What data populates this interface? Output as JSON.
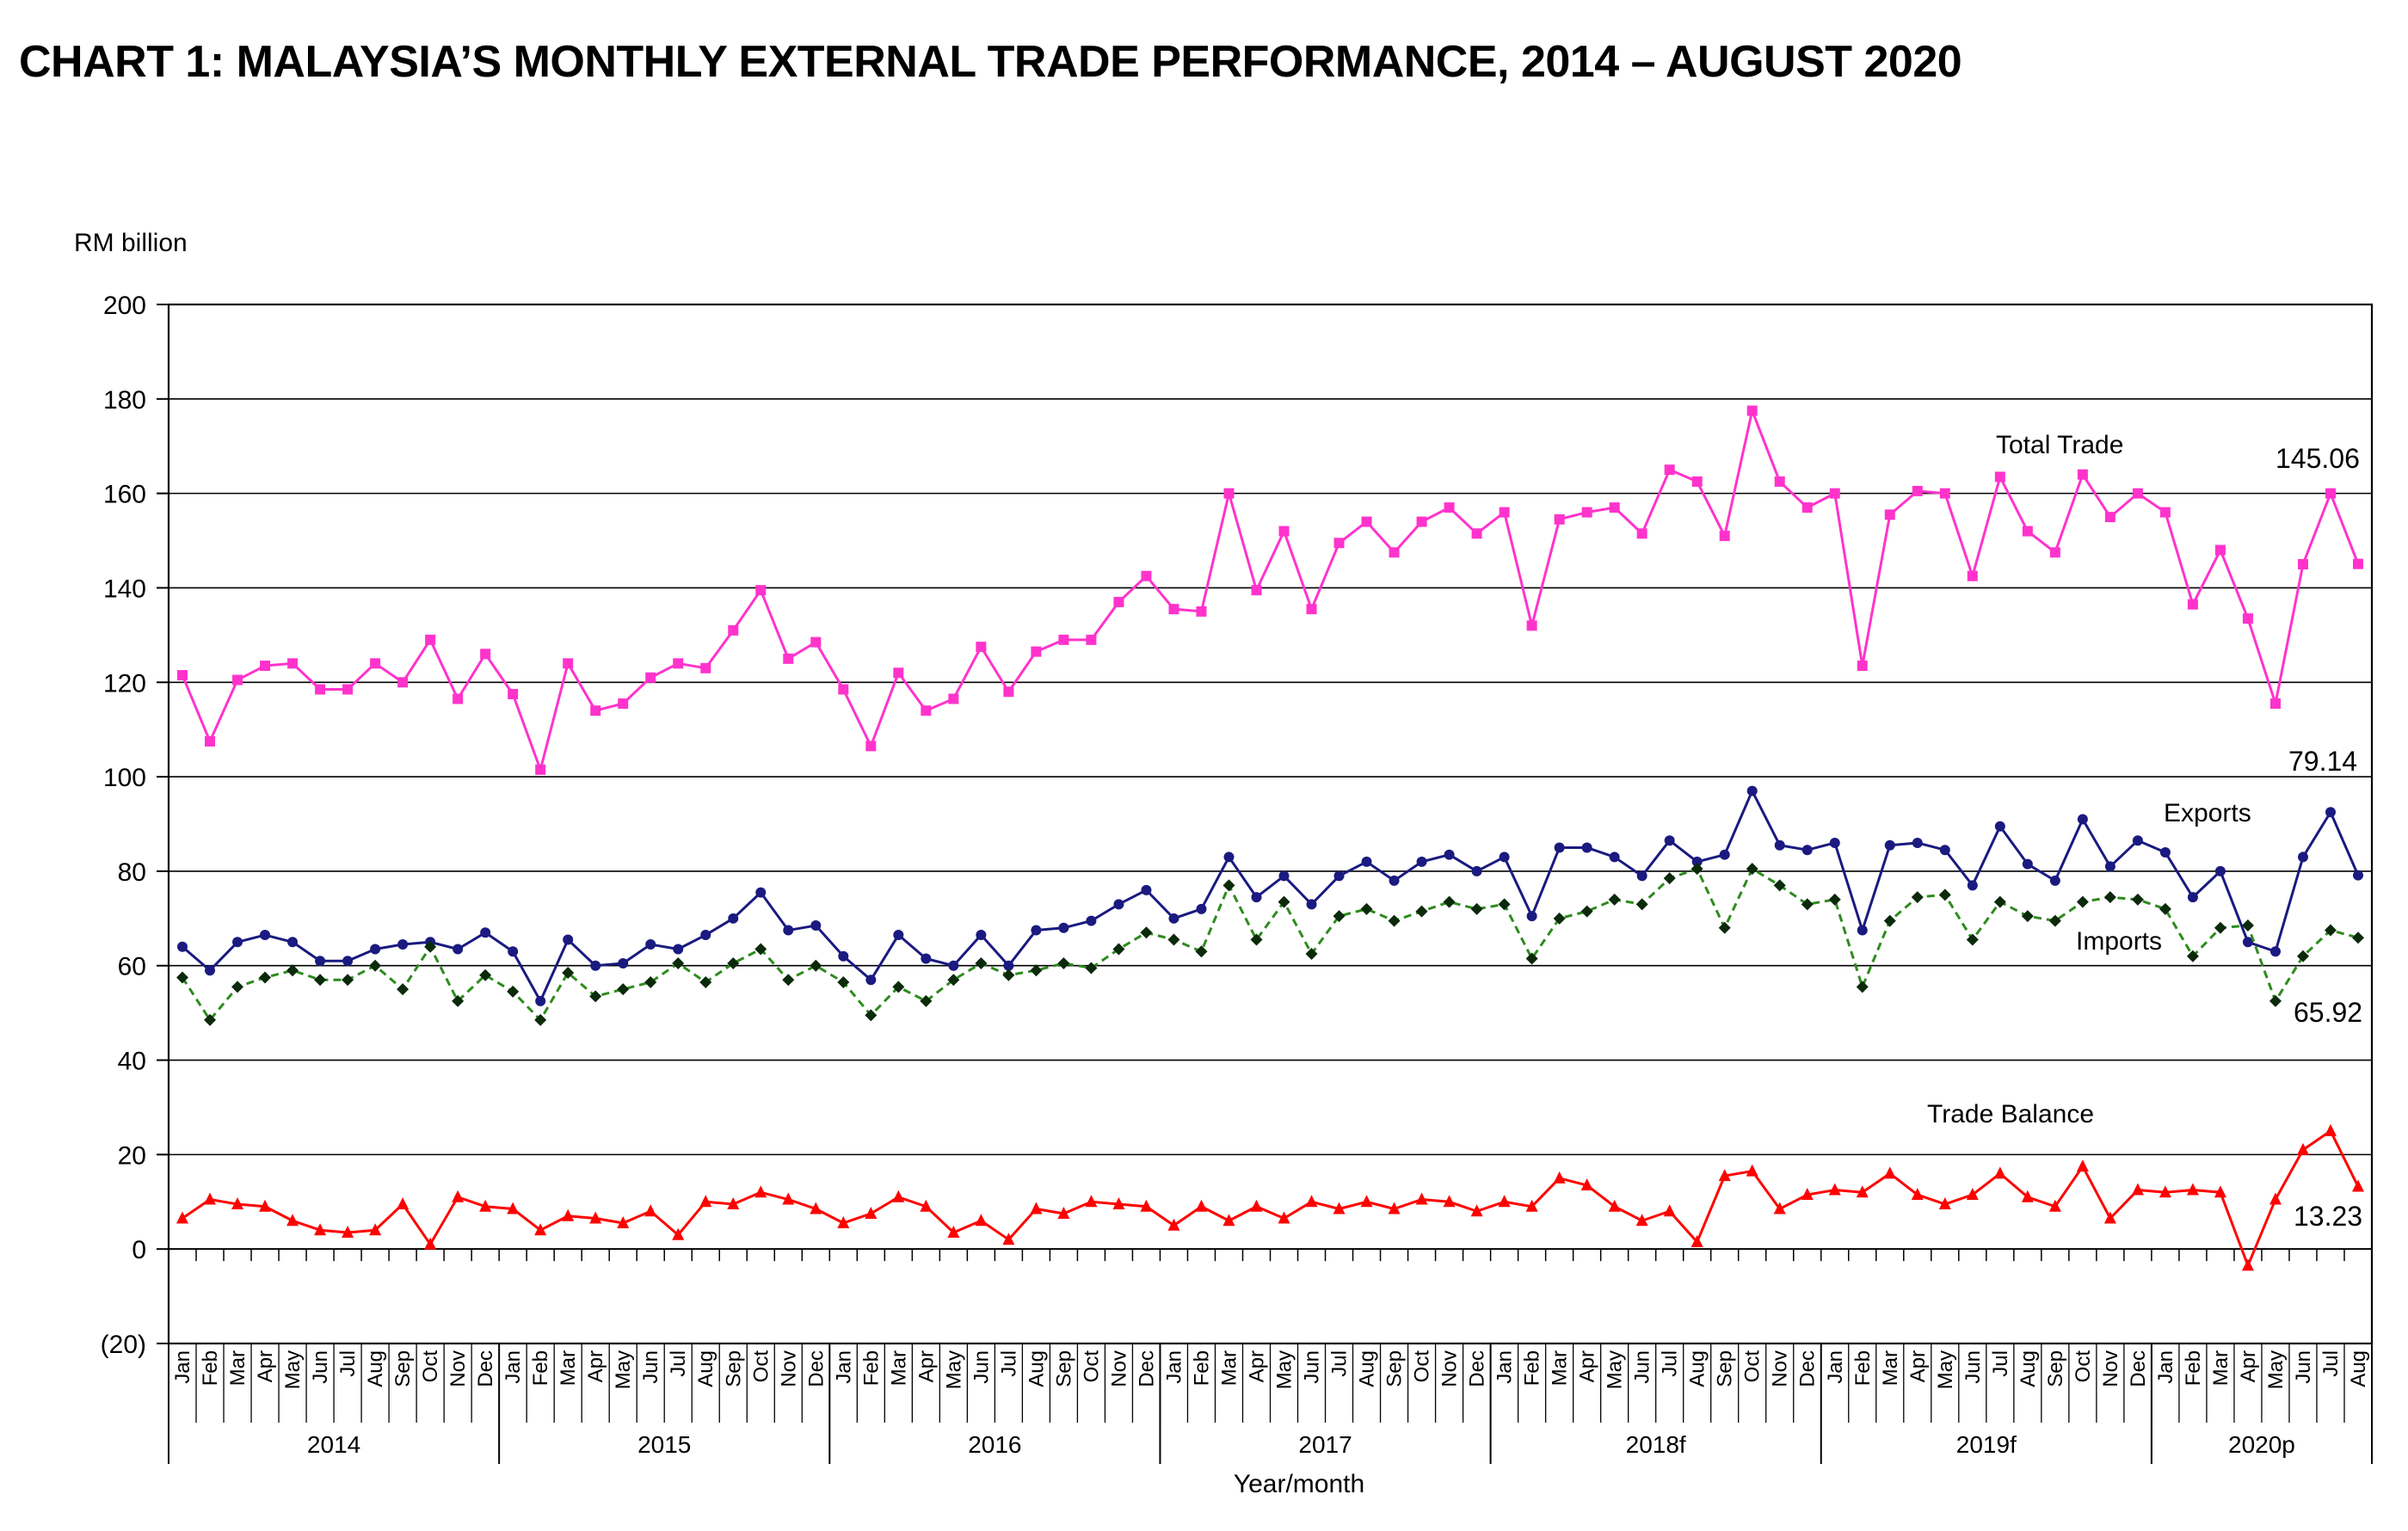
{
  "title": "CHART 1: MALAYSIA’S MONTHLY EXTERNAL TRADE PERFORMANCE, 2014 – AUGUST 2020",
  "chart_data": {
    "type": "line",
    "title": "CHART 1: MALAYSIA’S MONTHLY EXTERNAL TRADE PERFORMANCE, 2014 – AUGUST 2020",
    "ylabel": "RM billion",
    "xlabel": "Year/month",
    "ylim": [
      -20,
      200
    ],
    "yticks": [
      {
        "value": 200,
        "label": "200"
      },
      {
        "value": 180,
        "label": "180"
      },
      {
        "value": 160,
        "label": "160"
      },
      {
        "value": 140,
        "label": "140"
      },
      {
        "value": 120,
        "label": "120"
      },
      {
        "value": 100,
        "label": "100"
      },
      {
        "value": 80,
        "label": "80"
      },
      {
        "value": 60,
        "label": "60"
      },
      {
        "value": 40,
        "label": "40"
      },
      {
        "value": 20,
        "label": "20"
      },
      {
        "value": 0,
        "label": "0"
      },
      {
        "value": -20,
        "label": "(20)"
      }
    ],
    "grid": true,
    "months": [
      "Jan",
      "Feb",
      "Mar",
      "Apr",
      "May",
      "Jun",
      "Jul",
      "Aug",
      "Sep",
      "Oct",
      "Nov",
      "Dec"
    ],
    "years": [
      {
        "label": "2014",
        "months": 12
      },
      {
        "label": "2015",
        "months": 12
      },
      {
        "label": "2016",
        "months": 12
      },
      {
        "label": "2017",
        "months": 12
      },
      {
        "label": "2018f",
        "months": 12
      },
      {
        "label": "2019f",
        "months": 12
      },
      {
        "label": "2020p",
        "months": 8
      }
    ],
    "series": [
      {
        "name": "Total Trade",
        "color": "#ff33cc",
        "marker": "square",
        "dash": false,
        "values": [
          121.5,
          107.5,
          120.5,
          123.5,
          124.0,
          118.5,
          118.5,
          124.0,
          120.0,
          129.0,
          116.5,
          126.0,
          117.5,
          101.5,
          124.0,
          114.0,
          115.5,
          121.0,
          124.0,
          123.0,
          131.0,
          139.5,
          125.0,
          128.5,
          118.5,
          106.5,
          122.0,
          114.0,
          116.5,
          127.5,
          118.0,
          126.5,
          129.0,
          129.0,
          137.0,
          142.5,
          135.5,
          135.0,
          160.0,
          139.5,
          152.0,
          135.5,
          149.5,
          154.0,
          147.5,
          154.0,
          157.0,
          151.5,
          156.0,
          132.0,
          154.5,
          156.0,
          157.0,
          151.5,
          165.0,
          162.5,
          151.0,
          177.5,
          162.5,
          157.0,
          160.0,
          123.5,
          155.5,
          160.5,
          160.0,
          142.5,
          163.5,
          152.0,
          147.5,
          164.0,
          155.0,
          160.0,
          156.0,
          136.5,
          148.0,
          133.5,
          115.5,
          145.0,
          160.0,
          145.06
        ]
      },
      {
        "name": "Exports",
        "color": "#1a1a80",
        "marker": "circle",
        "dash": false,
        "values": [
          64.0,
          59.0,
          65.0,
          66.5,
          65.0,
          61.0,
          61.0,
          63.5,
          64.5,
          65.0,
          63.5,
          67.0,
          63.0,
          52.5,
          65.5,
          60.0,
          60.5,
          64.5,
          63.5,
          66.5,
          70.0,
          75.5,
          67.5,
          68.5,
          62.0,
          57.0,
          66.5,
          61.5,
          60.0,
          66.5,
          60.0,
          67.5,
          68.0,
          69.5,
          73.0,
          76.0,
          70.0,
          72.0,
          83.0,
          74.5,
          79.0,
          73.0,
          79.0,
          82.0,
          78.0,
          82.0,
          83.5,
          80.0,
          83.0,
          70.5,
          85.0,
          85.0,
          83.0,
          79.0,
          86.5,
          82.0,
          83.5,
          97.0,
          85.5,
          84.5,
          86.0,
          67.5,
          85.5,
          86.0,
          84.5,
          77.0,
          89.5,
          81.5,
          78.0,
          91.0,
          81.0,
          86.5,
          84.0,
          74.5,
          80.0,
          65.0,
          63.0,
          83.0,
          92.5,
          79.14
        ]
      },
      {
        "name": "Imports",
        "color": "#2e8b1e",
        "marker": "diamond",
        "dash": true,
        "values": [
          57.5,
          48.5,
          55.5,
          57.5,
          59.0,
          57.0,
          57.0,
          60.0,
          55.0,
          64.0,
          52.5,
          58.0,
          54.5,
          48.5,
          58.5,
          53.5,
          55.0,
          56.5,
          60.5,
          56.5,
          60.5,
          63.5,
          57.0,
          60.0,
          56.5,
          49.5,
          55.5,
          52.5,
          57.0,
          60.5,
          58.0,
          59.0,
          60.5,
          59.5,
          63.5,
          67.0,
          65.5,
          63.0,
          77.0,
          65.5,
          73.5,
          62.5,
          70.5,
          72.0,
          69.5,
          71.5,
          73.5,
          72.0,
          73.0,
          61.5,
          70.0,
          71.5,
          74.0,
          73.0,
          78.5,
          80.5,
          68.0,
          80.5,
          77.0,
          73.0,
          74.0,
          55.5,
          69.5,
          74.5,
          75.0,
          65.5,
          73.5,
          70.5,
          69.5,
          73.5,
          74.5,
          74.0,
          72.0,
          62.0,
          68.0,
          68.5,
          52.5,
          62.0,
          67.5,
          65.92
        ]
      },
      {
        "name": "Trade Balance",
        "color": "#ff0000",
        "marker": "triangle",
        "dash": false,
        "values": [
          6.5,
          10.5,
          9.5,
          9.0,
          6.0,
          4.0,
          3.5,
          4.0,
          9.5,
          1.0,
          11.0,
          9.0,
          8.5,
          4.0,
          7.0,
          6.5,
          5.5,
          8.0,
          3.0,
          10.0,
          9.5,
          12.0,
          10.5,
          8.5,
          5.5,
          7.5,
          11.0,
          9.0,
          3.5,
          6.0,
          2.0,
          8.5,
          7.5,
          10.0,
          9.5,
          9.0,
          5.0,
          9.0,
          6.0,
          9.0,
          6.5,
          10.0,
          8.5,
          10.0,
          8.5,
          10.5,
          10.0,
          8.0,
          10.0,
          9.0,
          15.0,
          13.5,
          9.0,
          6.0,
          8.0,
          1.5,
          15.5,
          16.5,
          8.5,
          11.5,
          12.5,
          12.0,
          16.0,
          11.5,
          9.5,
          11.5,
          16.0,
          11.0,
          9.0,
          17.5,
          6.5,
          12.5,
          12.0,
          12.5,
          12.0,
          -3.5,
          10.5,
          21.0,
          25.0,
          13.23
        ]
      }
    ]
  },
  "series_labels": {
    "total_trade": "Total Trade",
    "exports": "Exports",
    "imports": "Imports",
    "trade_balance": "Trade Balance"
  },
  "annotations": {
    "total_trade_last": "145.06",
    "exports_last": "79.14",
    "imports_last": "65.92",
    "trade_balance_last": "13.23"
  },
  "colors": {
    "negative_tick": "#cc0000",
    "grid": "#000000"
  }
}
